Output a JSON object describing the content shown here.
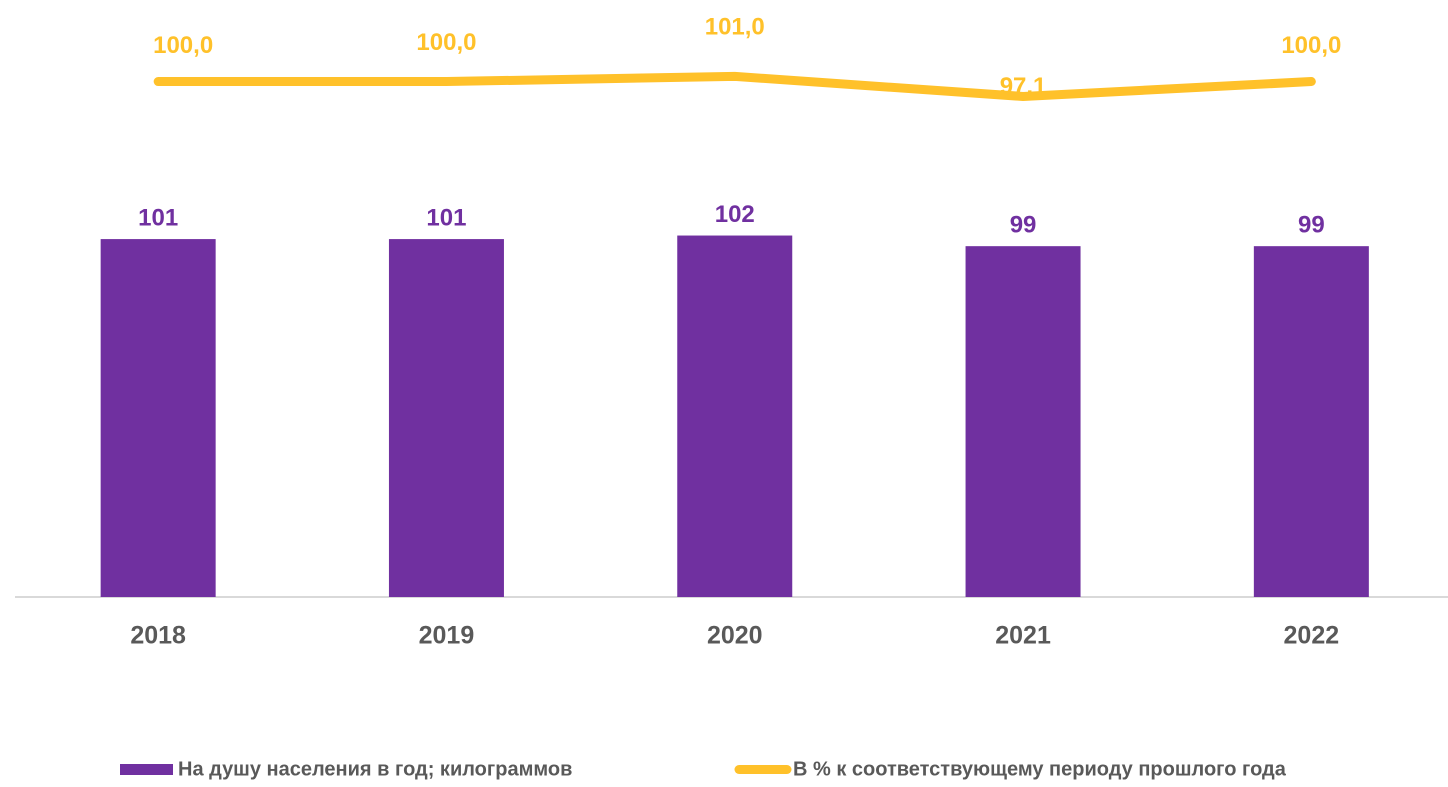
{
  "chart_data": {
    "type": "combo",
    "categories": [
      "2018",
      "2019",
      "2020",
      "2021",
      "2022"
    ],
    "series": [
      {
        "name": "На душу населения в год; килограммов",
        "type": "bar",
        "color": "#7030a0",
        "values": [
          101,
          101,
          102,
          99,
          99
        ]
      },
      {
        "name": "В % к соответствующему периоду прошлого года",
        "type": "line",
        "color": "#ffc12a",
        "axis": "y2",
        "values": [
          100,
          100,
          101,
          97.1,
          100
        ],
        "value_labels": [
          "100,0",
          "100,0",
          "101,0",
          "97,1",
          "100,0"
        ]
      }
    ],
    "ylim": [
      0,
      160
    ],
    "y2lim": [
      0,
      110
    ],
    "legend": "bottom"
  }
}
